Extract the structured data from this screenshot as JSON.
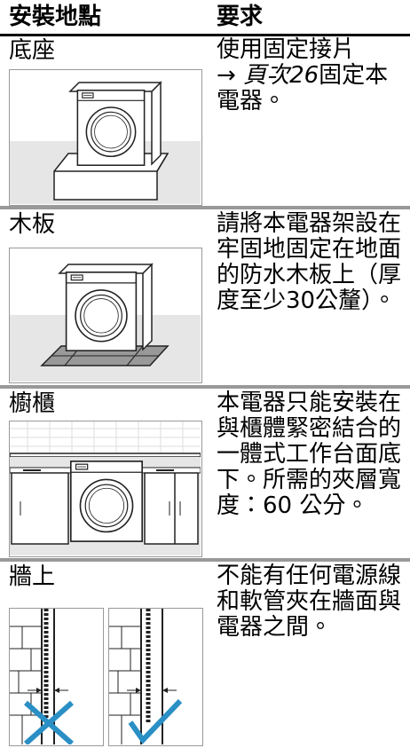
{
  "table": {
    "header": [
      "安裝地點",
      "要求"
    ],
    "rows": [
      {
        "location": "底座",
        "requirement": [
          "使用固定接片",
          "→",
          "頁次26",
          "固定本電器。"
        ]
      },
      {
        "location": "木板",
        "requirement": [
          "請將本電器架設在牢固地固定在地面的防水木板上（厚度至少30公釐）。"
        ]
      },
      {
        "location": "櫥櫃",
        "requirement": [
          "本電器只能安裝在與櫃體緊密結合的一體式工作台面底下。所需的夾層寬度：60 公分。"
        ]
      },
      {
        "location": "牆上",
        "requirement": [
          "不能有任何電源線和軟管夾在牆面與電器之間。"
        ]
      }
    ]
  }
}
